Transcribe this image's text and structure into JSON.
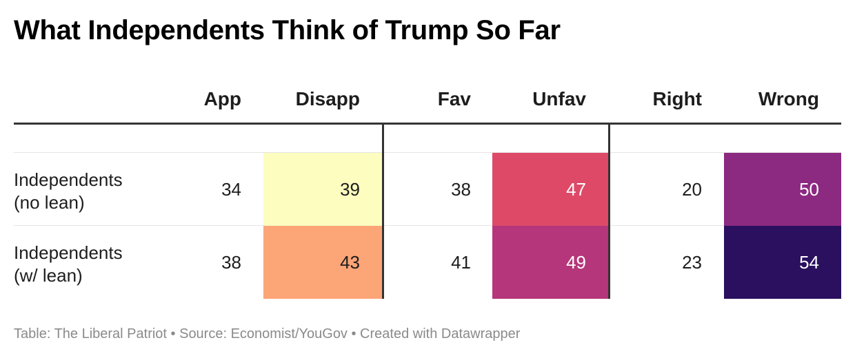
{
  "chart_data": {
    "type": "table",
    "title": "What Independents Think of Trump So Far",
    "columns": [
      "App",
      "Disapp",
      "Fav",
      "Unfav",
      "Right",
      "Wrong"
    ],
    "rows": [
      {
        "label_line1": "Independents",
        "label_line2": "(no lean)",
        "values": [
          34,
          39,
          38,
          47,
          20,
          50
        ]
      },
      {
        "label_line1": "Independents",
        "label_line2": "(w/ lean)",
        "values": [
          38,
          43,
          41,
          49,
          23,
          54
        ]
      }
    ],
    "heat_colors": {
      "39": "#fcfdbf",
      "43": "#fca577",
      "47": "#de4968",
      "49": "#b5367a",
      "50": "#8c2981",
      "54": "#2a105f"
    },
    "light_text_color": "#ffffff",
    "dark_text_color": "#1d1d1d"
  },
  "footer": "Table: The Liberal Patriot • Source: Economist/YouGov • Created with Datawrapper"
}
